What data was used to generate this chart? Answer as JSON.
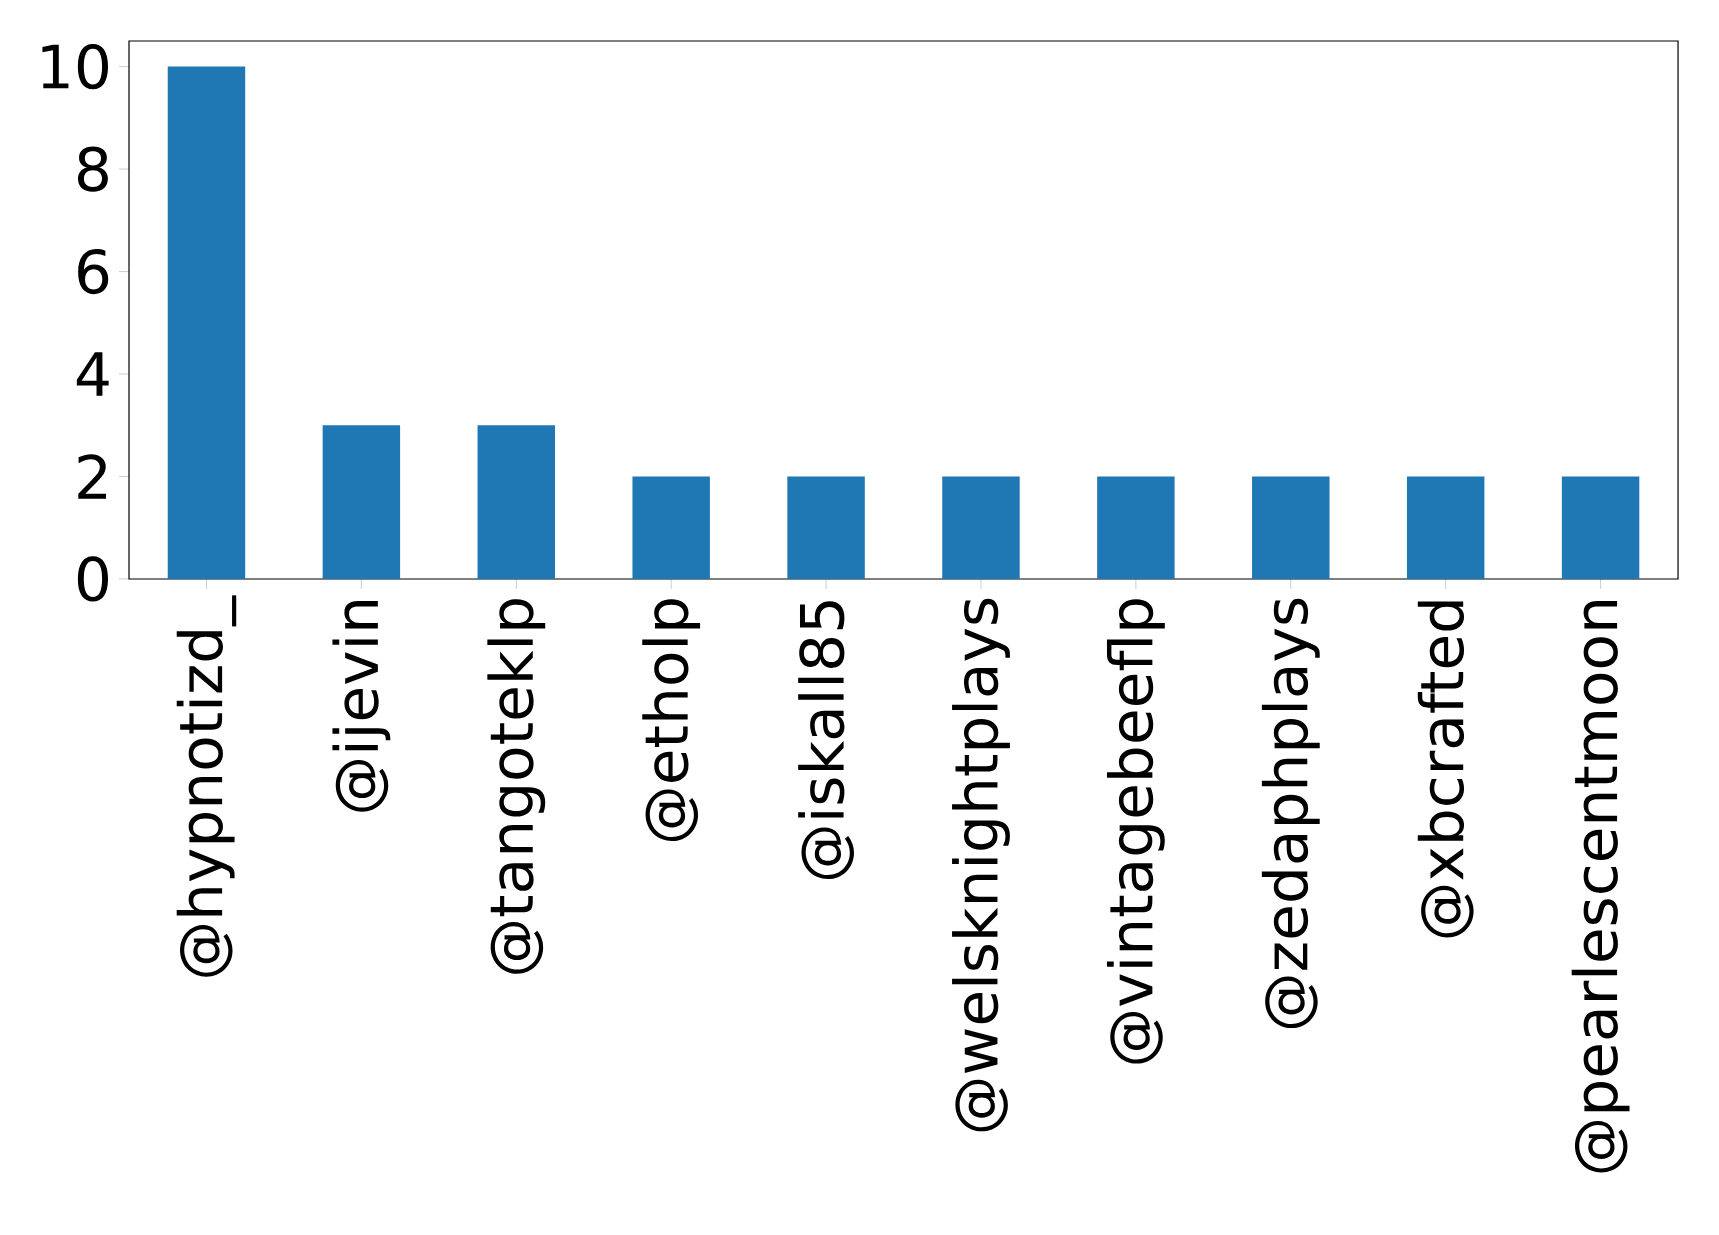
{
  "chart_data": {
    "type": "bar",
    "categories": [
      "@hypnotizd_",
      "@ijevin",
      "@tangoteklp",
      "@etholp",
      "@iskall85",
      "@welsknightplays",
      "@vintagebeeflp",
      "@zedaphplays",
      "@xbcrafted",
      "@pearlescentmoon"
    ],
    "values": [
      10,
      3,
      3,
      2,
      2,
      2,
      2,
      2,
      2,
      2
    ],
    "color": "#1f77b4",
    "ylim": [
      0,
      10.5
    ],
    "yticks": [
      0,
      2,
      4,
      6,
      8,
      10
    ]
  }
}
